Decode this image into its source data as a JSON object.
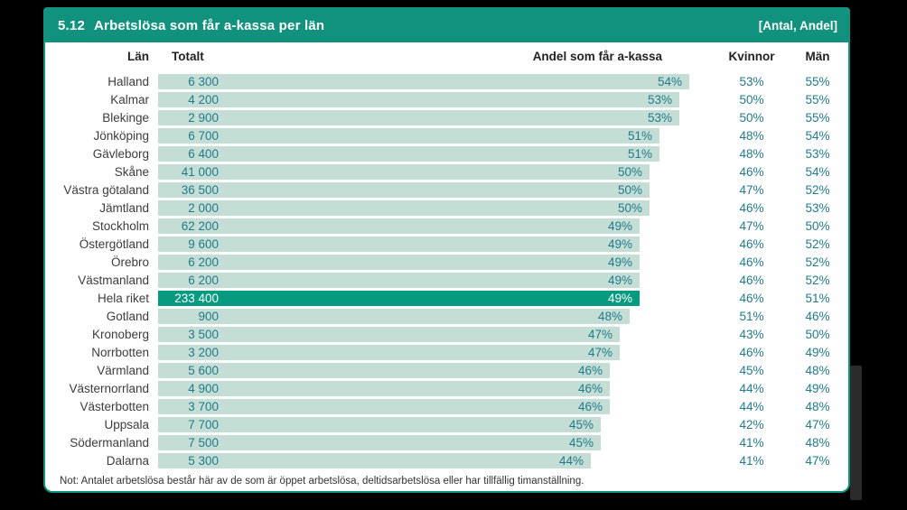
{
  "header": {
    "number": "5.12",
    "title": "Arbetslösa som får a-kassa per län",
    "unit_label": "[Antal, Andel]"
  },
  "columns": {
    "lan": "Län",
    "totalt": "Totalt",
    "andel": "Andel som får a-kassa",
    "kvinnor": "Kvinnor",
    "man": "Män"
  },
  "note": "Not: Antalet arbetslösa består här av de som är öppet arbetslösa, deltidsarbetslösa eller har tillfällig timanställning.",
  "colors": {
    "header_teal": "#11927E",
    "bar_light": "#C5DED5",
    "bar_highlight": "#069B80",
    "value_text": "#1F7A8C",
    "label_text": "#3C3C3C",
    "page_background": "#000000"
  },
  "chart_data": {
    "type": "bar",
    "title": "5.12 Arbetslösa som får a-kassa per län",
    "unit_label": "[Antal, Andel]",
    "orientation": "horizontal",
    "xlabel": "Andel som får a-kassa",
    "value_range_percent": [
      0,
      54
    ],
    "columns": [
      "Län",
      "Totalt",
      "Andel som får a-kassa",
      "Kvinnor",
      "Män"
    ],
    "rows": [
      {
        "lan": "Halland",
        "totalt": "6 300",
        "andel": 54,
        "andel_label": "54%",
        "kvinnor": "53%",
        "man": "55%",
        "highlight": false
      },
      {
        "lan": "Kalmar",
        "totalt": "4 200",
        "andel": 53,
        "andel_label": "53%",
        "kvinnor": "50%",
        "man": "55%",
        "highlight": false
      },
      {
        "lan": "Blekinge",
        "totalt": "2 900",
        "andel": 53,
        "andel_label": "53%",
        "kvinnor": "50%",
        "man": "55%",
        "highlight": false
      },
      {
        "lan": "Jönköping",
        "totalt": "6 700",
        "andel": 51,
        "andel_label": "51%",
        "kvinnor": "48%",
        "man": "54%",
        "highlight": false
      },
      {
        "lan": "Gävleborg",
        "totalt": "6 400",
        "andel": 51,
        "andel_label": "51%",
        "kvinnor": "48%",
        "man": "53%",
        "highlight": false
      },
      {
        "lan": "Skåne",
        "totalt": "41 000",
        "andel": 50,
        "andel_label": "50%",
        "kvinnor": "46%",
        "man": "54%",
        "highlight": false
      },
      {
        "lan": "Västra götaland",
        "totalt": "36 500",
        "andel": 50,
        "andel_label": "50%",
        "kvinnor": "47%",
        "man": "52%",
        "highlight": false
      },
      {
        "lan": "Jämtland",
        "totalt": "2 000",
        "andel": 50,
        "andel_label": "50%",
        "kvinnor": "46%",
        "man": "53%",
        "highlight": false
      },
      {
        "lan": "Stockholm",
        "totalt": "62 200",
        "andel": 49,
        "andel_label": "49%",
        "kvinnor": "47%",
        "man": "50%",
        "highlight": false
      },
      {
        "lan": "Östergötland",
        "totalt": "9 600",
        "andel": 49,
        "andel_label": "49%",
        "kvinnor": "46%",
        "man": "52%",
        "highlight": false
      },
      {
        "lan": "Örebro",
        "totalt": "6 200",
        "andel": 49,
        "andel_label": "49%",
        "kvinnor": "46%",
        "man": "52%",
        "highlight": false
      },
      {
        "lan": "Västmanland",
        "totalt": "6 200",
        "andel": 49,
        "andel_label": "49%",
        "kvinnor": "46%",
        "man": "52%",
        "highlight": false
      },
      {
        "lan": "Hela riket",
        "totalt": "233 400",
        "andel": 49,
        "andel_label": "49%",
        "kvinnor": "46%",
        "man": "51%",
        "highlight": true
      },
      {
        "lan": "Gotland",
        "totalt": "900",
        "andel": 48,
        "andel_label": "48%",
        "kvinnor": "51%",
        "man": "46%",
        "highlight": false
      },
      {
        "lan": "Kronoberg",
        "totalt": "3 500",
        "andel": 47,
        "andel_label": "47%",
        "kvinnor": "43%",
        "man": "50%",
        "highlight": false
      },
      {
        "lan": "Norrbotten",
        "totalt": "3 200",
        "andel": 47,
        "andel_label": "47%",
        "kvinnor": "46%",
        "man": "49%",
        "highlight": false
      },
      {
        "lan": "Värmland",
        "totalt": "5 600",
        "andel": 46,
        "andel_label": "46%",
        "kvinnor": "45%",
        "man": "48%",
        "highlight": false
      },
      {
        "lan": "Västernorrland",
        "totalt": "4 900",
        "andel": 46,
        "andel_label": "46%",
        "kvinnor": "44%",
        "man": "49%",
        "highlight": false
      },
      {
        "lan": "Västerbotten",
        "totalt": "3 700",
        "andel": 46,
        "andel_label": "46%",
        "kvinnor": "44%",
        "man": "48%",
        "highlight": false
      },
      {
        "lan": "Uppsala",
        "totalt": "7 700",
        "andel": 45,
        "andel_label": "45%",
        "kvinnor": "42%",
        "man": "47%",
        "highlight": false
      },
      {
        "lan": "Södermanland",
        "totalt": "7 500",
        "andel": 45,
        "andel_label": "45%",
        "kvinnor": "41%",
        "man": "48%",
        "highlight": false
      },
      {
        "lan": "Dalarna",
        "totalt": "5 300",
        "andel": 44,
        "andel_label": "44%",
        "kvinnor": "41%",
        "man": "47%",
        "highlight": false
      }
    ]
  }
}
